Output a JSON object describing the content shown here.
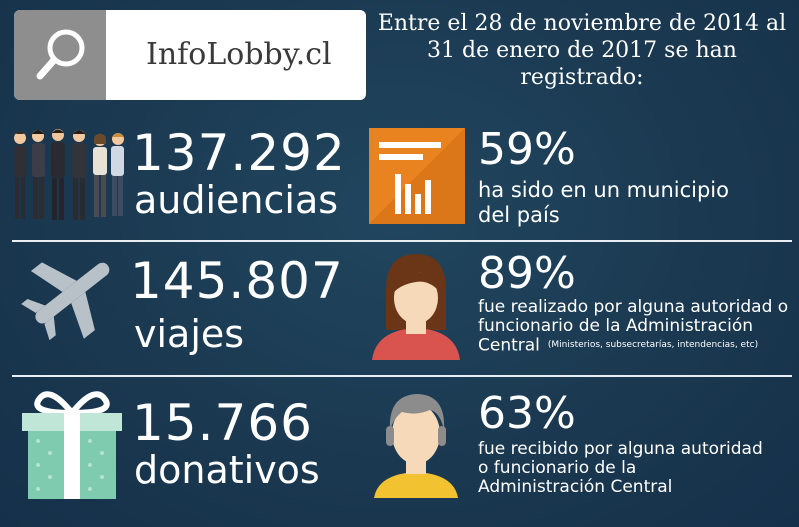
{
  "logo": {
    "text": "InfoLobby.cl",
    "icon": "search-icon"
  },
  "header": {
    "text": "Entre el 28 de noviembre de 2014 al 31 de enero de 2017 se han registrado:"
  },
  "stats": [
    {
      "number": "137.292",
      "label": "audiencias",
      "icon": "people-group-icon",
      "percent": "59%",
      "description": "ha sido en un municipio del país",
      "side_icon": "bar-chart-icon"
    },
    {
      "number": "145.807",
      "label": "viajes",
      "icon": "airplane-icon",
      "percent": "89%",
      "description": "fue realizado por alguna autoridad o funcionario de la Administración Central",
      "note": "(Ministerios, subsecretarías, intendencias, etc)",
      "side_icon": "woman-avatar-icon"
    },
    {
      "number": "15.766",
      "label": "donativos",
      "icon": "gift-icon",
      "percent": "63%",
      "description": "fue recibido por alguna autoridad o funcionario de la Administración Central",
      "side_icon": "man-avatar-icon"
    }
  ],
  "colors": {
    "background": "#1b3a52",
    "chart_orange": "#e8831f",
    "avatar_shirt": "#d9534f",
    "avatar_skin": "#f6d9b8",
    "gift_teal": "#7ecbb0",
    "airplane": "#b8c0c8"
  }
}
